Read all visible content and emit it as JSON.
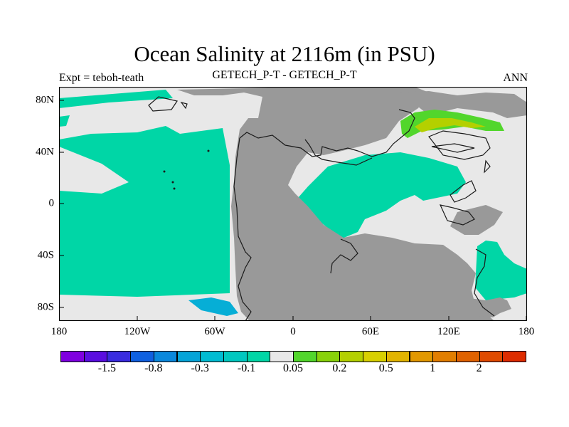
{
  "title": "Ocean Salinity at 2116m (in PSU)",
  "left_label": "Expt = teboh-teath",
  "center_label": "GETECH_P-T - GETECH_P-T",
  "right_label": "ANN",
  "x_ticks": [
    "180",
    "120W",
    "60W",
    "0",
    "60E",
    "120E",
    "180"
  ],
  "y_ticks": [
    "80N",
    "40N",
    "0",
    "40S",
    "80S"
  ],
  "colors": {
    "ocean_neutral": "#e8e8e8",
    "ocean_neg_0_1": "#00d6a6",
    "land": "#999999",
    "coastline": "#1a1a1a"
  },
  "legend": {
    "colors": [
      "#7f00e0",
      "#5a0ee0",
      "#3a2ce0",
      "#1060e0",
      "#0b88dc",
      "#05a4d8",
      "#00bcd2",
      "#00c8c0",
      "#00d6a6",
      "#e8e8e8",
      "#52d62c",
      "#88d20a",
      "#b4d000",
      "#d8d000",
      "#e2b400",
      "#e29800",
      "#e27e00",
      "#e06200",
      "#e04a00",
      "#de2c00"
    ],
    "labels": [
      "-1.5",
      "-0.8",
      "-0.3",
      "-0.1",
      "0.05",
      "0.2",
      "0.5",
      "1",
      "2"
    ]
  }
}
